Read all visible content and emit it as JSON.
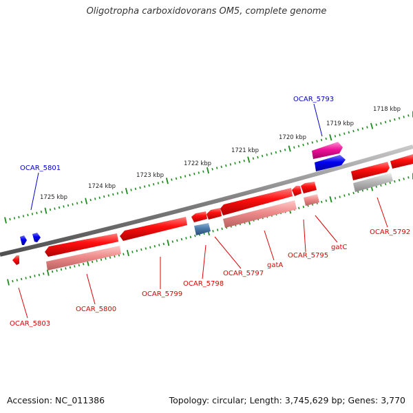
{
  "title": "Oligotropha carboxidovorans OM5, complete genome",
  "footer": {
    "accession": "Accession: NC_011386",
    "topology": "Topology: circular; Length: 3,745,629 bp; Genes: 3,770"
  },
  "colors": {
    "backbone": "#808080",
    "tick": "#1a8a1a",
    "forward_label": "#0000cc",
    "reverse_label": "#dd0000",
    "gene_red": "#ee1111",
    "gene_pink": "#ee8888",
    "gene_blue": "#0000ee",
    "gene_magenta": "#ee1199",
    "gene_gray": "#b8b8b8",
    "gene_steel": "#4a7aa8"
  },
  "scale_labels": [
    "1718 kbp",
    "1719 kbp",
    "1720 kbp",
    "1721 kbp",
    "1722 kbp",
    "1723 kbp",
    "1724 kbp",
    "1725 kbp"
  ],
  "forward_gene_labels": [
    "OCAR_5793",
    "OCAR_5801"
  ],
  "reverse_gene_labels": [
    "OCAR_5792",
    "gatC",
    "OCAR_5795",
    "gatA",
    "OCAR_5797",
    "OCAR_5798",
    "OCAR_5799",
    "OCAR_5800",
    "OCAR_5803"
  ]
}
